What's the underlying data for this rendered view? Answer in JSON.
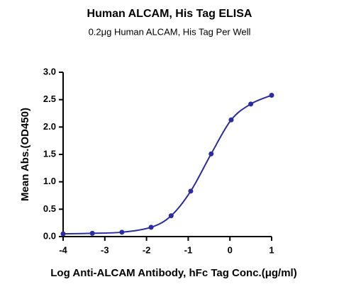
{
  "chart_data": {
    "type": "scatter",
    "title": "Human ALCAM, His Tag ELISA",
    "subtitle": "0.2μg Human ALCAM, His Tag Per Well",
    "x_label": "Log Anti-ALCAM Antibody, hFc Tag Conc.(μg/ml)",
    "y_label": "Mean Abs.(OD450)",
    "series": [
      {
        "color": "#2b2ca3",
        "x": [
          -4,
          -3.3,
          -2.59,
          -1.89,
          -1.41,
          -0.94,
          -0.45,
          0.03,
          0.5,
          1
        ],
        "y": [
          0.05,
          0.06,
          0.08,
          0.17,
          0.38,
          0.83,
          1.51,
          2.13,
          2.42,
          2.58
        ]
      }
    ],
    "curve": true,
    "xlim": [
      -4,
      1
    ],
    "xticks": [
      -4,
      -3,
      -2,
      -1,
      0,
      1
    ],
    "ylim": [
      0,
      3
    ],
    "yticks": [
      {
        "value": 0,
        "label": "0.0"
      },
      0.5,
      {
        "value": 1,
        "label": "1.0"
      },
      1.5,
      {
        "value": 2,
        "label": "2.0"
      },
      2.5,
      {
        "value": 3,
        "label": "3.0"
      }
    ]
  }
}
